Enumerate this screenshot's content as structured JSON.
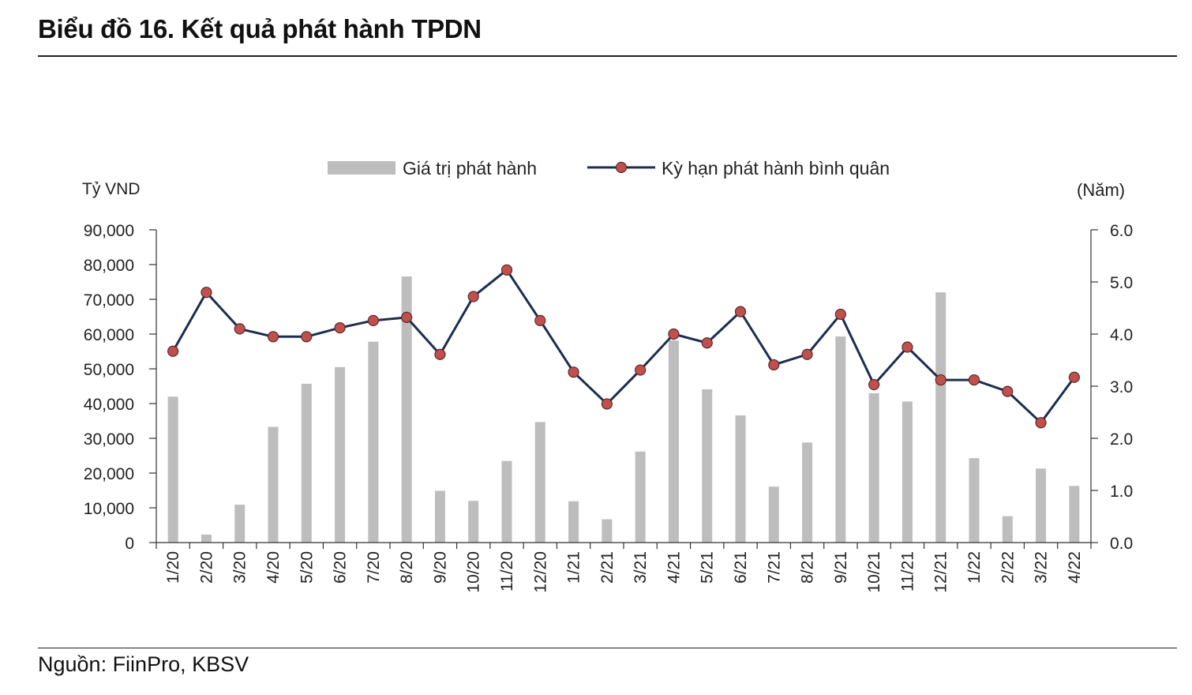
{
  "title": "Biểu đồ 16. Kết quả phát hành TPDN",
  "source": "Nguồn: FiinPro, KBSV",
  "chart_data": {
    "type": "bar+line",
    "categories": [
      "1/20",
      "2/20",
      "3/20",
      "4/20",
      "5/20",
      "6/20",
      "7/20",
      "8/20",
      "9/20",
      "10/20",
      "11/20",
      "12/20",
      "1/21",
      "2/21",
      "3/21",
      "4/21",
      "5/21",
      "6/21",
      "7/21",
      "8/21",
      "9/21",
      "10/21",
      "11/21",
      "12/21",
      "1/22",
      "2/22",
      "3/22",
      "4/22"
    ],
    "series": [
      {
        "name": "Giá trị phát hành",
        "type": "bar",
        "axis": "left",
        "color": "#bdbdbd",
        "values": [
          42000,
          2300,
          10900,
          33300,
          45700,
          50500,
          57800,
          76600,
          14900,
          12000,
          23500,
          34700,
          11900,
          6700,
          26200,
          58200,
          44100,
          36600,
          16100,
          28800,
          59300,
          43000,
          40600,
          72000,
          24300,
          7600,
          21300,
          16300
        ]
      },
      {
        "name": "Kỳ hạn phát hành bình quân",
        "type": "line",
        "axis": "right",
        "color": "#1c2d4f",
        "marker_color": "#c0504d",
        "values": [
          3.67,
          4.8,
          4.1,
          3.95,
          3.95,
          4.12,
          4.26,
          4.32,
          3.61,
          4.72,
          5.23,
          4.26,
          3.27,
          2.66,
          3.31,
          4.0,
          3.83,
          4.43,
          3.41,
          3.61,
          4.38,
          3.03,
          3.75,
          3.12,
          3.12,
          2.9,
          2.3,
          3.17
        ]
      }
    ],
    "ylabel_left": "Tỷ VND",
    "ylabel_right": "(Năm)",
    "ylim_left": [
      0,
      90000
    ],
    "ylim_right": [
      0,
      6
    ],
    "yticks_left": [
      "0",
      "10,000",
      "20,000",
      "30,000",
      "40,000",
      "50,000",
      "60,000",
      "70,000",
      "80,000",
      "90,000"
    ],
    "yticks_right": [
      "0.0",
      "1.0",
      "2.0",
      "3.0",
      "4.0",
      "5.0",
      "6.0"
    ],
    "legend_position": "top-center",
    "grid": false
  }
}
